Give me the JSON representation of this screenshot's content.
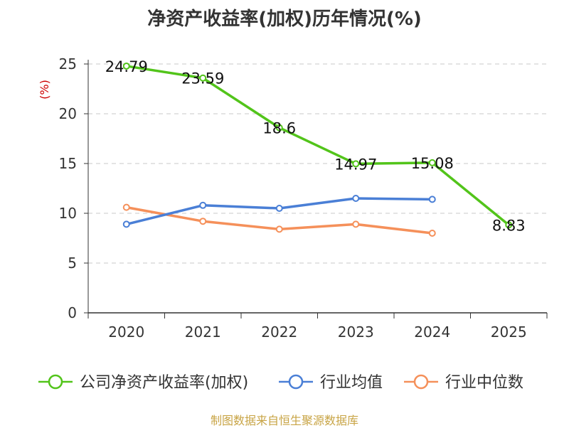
{
  "chart_data": {
    "type": "line",
    "title": "净资产收益率(加权)历年情况(%)",
    "ylabel": "(%)",
    "xlabel": "",
    "categories": [
      "2020",
      "2021",
      "2022",
      "2023",
      "2024",
      "2025"
    ],
    "ylim": [
      0,
      25
    ],
    "yticks": [
      0,
      5,
      10,
      15,
      20,
      25
    ],
    "grid": true,
    "legend_position": "bottom",
    "series": [
      {
        "name": "公司净资产收益率(加权)",
        "color": "#52c41a",
        "values": [
          24.79,
          23.59,
          18.6,
          14.97,
          15.08,
          8.83
        ],
        "labels": [
          "24.79",
          "23.59",
          "18.6",
          "14.97",
          "15.08",
          "8.83"
        ]
      },
      {
        "name": "行业均值",
        "color": "#4a7fd6",
        "values": [
          8.9,
          10.8,
          10.5,
          11.5,
          11.4,
          null
        ]
      },
      {
        "name": "行业中位数",
        "color": "#f5905a",
        "values": [
          10.6,
          9.2,
          8.4,
          8.9,
          8.0,
          null
        ]
      }
    ]
  },
  "footer": "制图数据来自恒生聚源数据库"
}
